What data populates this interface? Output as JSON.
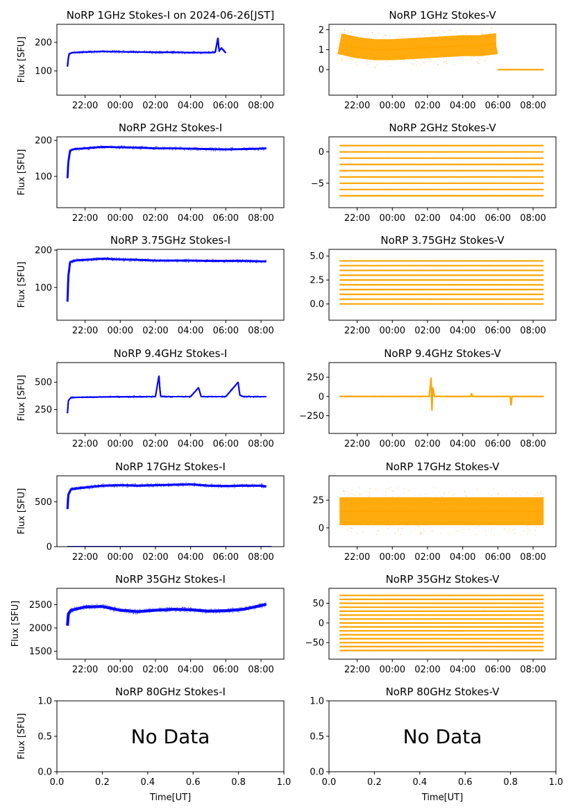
{
  "figure": {
    "background": "#ffffff"
  },
  "colors": {
    "stokes_i": "#0000ff",
    "stokes_v": "#ffa500"
  },
  "chart_data": [
    {
      "type": "scatter",
      "title": "NoRP 1GHz Stokes-I on 2024-06-26[JST]",
      "ylabel": "Flux [SFU]",
      "xlabel": "",
      "column": "left",
      "color": "#0000ff",
      "xlim_hours": [
        20.4,
        33.3
      ],
      "ylim": [
        15,
        263
      ],
      "xticks": [
        "22:00",
        "00:00",
        "02:00",
        "04:00",
        "06:00",
        "08:00"
      ],
      "xtick_hours": [
        22,
        24,
        26,
        28,
        30,
        32
      ],
      "yticks": [
        100,
        200
      ],
      "ytick_labels": [
        "100",
        "200"
      ],
      "series": [
        {
          "x_hours": [
            21.0,
            21.05,
            21.1,
            21.3,
            22,
            23,
            24,
            25,
            26,
            27,
            28,
            29,
            29.4,
            29.55,
            29.62,
            29.75,
            30.0
          ],
          "values": [
            115,
            145,
            160,
            164,
            166,
            168,
            167,
            166,
            165,
            165,
            164,
            164,
            165,
            215,
            170,
            180,
            163
          ],
          "spread": 4
        }
      ]
    },
    {
      "type": "scatter",
      "title": "NoRP 1GHz Stokes-V",
      "ylabel": "",
      "xlabel": "",
      "column": "right",
      "color": "#ffa500",
      "xlim_hours": [
        20.4,
        33.3
      ],
      "ylim": [
        -1.28,
        2.27
      ],
      "xticks": [
        "22:00",
        "00:00",
        "02:00",
        "04:00",
        "06:00",
        "08:00"
      ],
      "xtick_hours": [
        22,
        24,
        26,
        28,
        30,
        32
      ],
      "yticks": [
        0,
        1,
        2
      ],
      "ytick_labels": [
        "0",
        "1",
        "2"
      ],
      "series": [
        {
          "x_hours": [
            21.0,
            22,
            23,
            24,
            25,
            26,
            27,
            28,
            29,
            29.9
          ],
          "values": [
            1.3,
            1.1,
            1.0,
            1.0,
            1.05,
            1.1,
            1.15,
            1.2,
            1.2,
            1.3
          ],
          "spread": 0.75
        },
        {
          "x_hours": [
            30.0,
            32.6
          ],
          "values": [
            0,
            0
          ],
          "spread": 0.02
        }
      ]
    },
    {
      "type": "scatter",
      "title": "NoRP 2GHz Stokes-I",
      "ylabel": "Flux [SFU]",
      "xlabel": "",
      "column": "left",
      "color": "#0000ff",
      "xlim_hours": [
        20.4,
        33.3
      ],
      "ylim": [
        13,
        210
      ],
      "xticks": [
        "22:00",
        "00:00",
        "02:00",
        "04:00",
        "06:00",
        "08:00"
      ],
      "xtick_hours": [
        22,
        24,
        26,
        28,
        30,
        32
      ],
      "yticks": [
        100,
        200
      ],
      "ytick_labels": [
        "100",
        "200"
      ],
      "series": [
        {
          "x_hours": [
            21.0,
            21.05,
            21.15,
            21.4,
            22,
            23,
            24,
            25,
            26,
            27,
            28,
            29,
            30,
            31,
            32,
            32.3
          ],
          "values": [
            95,
            140,
            172,
            176,
            178,
            182,
            181,
            180,
            178,
            178,
            177,
            176,
            175,
            176,
            177,
            178
          ],
          "spread": 4
        }
      ]
    },
    {
      "type": "scatter",
      "title": "NoRP 2GHz Stokes-V",
      "ylabel": "",
      "xlabel": "",
      "column": "right",
      "color": "#ffa500",
      "xlim_hours": [
        20.4,
        33.3
      ],
      "ylim": [
        -8.9,
        2.4
      ],
      "xticks": [
        "22:00",
        "00:00",
        "02:00",
        "04:00",
        "06:00",
        "08:00"
      ],
      "xtick_hours": [
        22,
        24,
        26,
        28,
        30,
        32
      ],
      "yticks": [
        -5,
        0
      ],
      "ytick_labels": [
        "−5",
        "0"
      ],
      "series": [
        {
          "x_hours": [
            21.0,
            32.6
          ],
          "levels": [
            1,
            0,
            -1,
            -2,
            -3,
            -4,
            -5,
            -6,
            -7
          ],
          "values": [
            0,
            0
          ]
        }
      ]
    },
    {
      "type": "scatter",
      "title": "NoRP 3.75GHz Stokes-I",
      "ylabel": "Flux [SFU]",
      "xlabel": "",
      "column": "left",
      "color": "#0000ff",
      "xlim_hours": [
        20.4,
        33.3
      ],
      "ylim": [
        12,
        202
      ],
      "xticks": [
        "22:00",
        "00:00",
        "02:00",
        "04:00",
        "06:00",
        "08:00"
      ],
      "xtick_hours": [
        22,
        24,
        26,
        28,
        30,
        32
      ],
      "yticks": [
        100,
        200
      ],
      "ytick_labels": [
        "100",
        "200"
      ],
      "series": [
        {
          "x_hours": [
            21.0,
            21.05,
            21.15,
            21.4,
            22,
            23,
            24,
            25,
            26,
            27,
            28,
            29,
            30,
            31,
            32,
            32.3
          ],
          "values": [
            62,
            130,
            168,
            172,
            174,
            177,
            175,
            174,
            172,
            172,
            172,
            171,
            171,
            171,
            170,
            170
          ],
          "spread": 4
        }
      ]
    },
    {
      "type": "scatter",
      "title": "NoRP 3.75GHz Stokes-V",
      "ylabel": "",
      "xlabel": "",
      "column": "right",
      "color": "#ffa500",
      "xlim_hours": [
        20.4,
        33.3
      ],
      "ylim": [
        -1.7,
        5.7
      ],
      "xticks": [
        "22:00",
        "00:00",
        "02:00",
        "04:00",
        "06:00",
        "08:00"
      ],
      "xtick_hours": [
        22,
        24,
        26,
        28,
        30,
        32
      ],
      "yticks": [
        0.0,
        2.5,
        5.0
      ],
      "ytick_labels": [
        "0.0",
        "2.5",
        "5.0"
      ],
      "series": [
        {
          "x_hours": [
            21.0,
            32.6
          ],
          "levels": [
            0,
            0.5,
            1,
            1.5,
            2,
            2.5,
            3,
            3.5,
            4,
            4.5
          ],
          "values": [
            0,
            0
          ]
        }
      ]
    },
    {
      "type": "scatter",
      "title": "NoRP 9.4GHz Stokes-I",
      "ylabel": "Flux [SFU]",
      "xlabel": "",
      "column": "left",
      "color": "#0000ff",
      "xlim_hours": [
        20.4,
        33.3
      ],
      "ylim": [
        30,
        680
      ],
      "xticks": [
        "22:00",
        "00:00",
        "02:00",
        "04:00",
        "06:00",
        "08:00"
      ],
      "xtick_hours": [
        22,
        24,
        26,
        28,
        30,
        32
      ],
      "yticks": [
        250,
        500
      ],
      "ytick_labels": [
        "250",
        "500"
      ],
      "series": [
        {
          "x_hours": [
            21.0,
            21.05,
            21.2,
            22,
            23,
            24,
            25,
            26,
            26.2,
            26.25,
            26.3,
            26.5,
            27,
            28,
            28.45,
            28.6,
            29,
            30,
            30.7,
            30.8,
            31,
            32,
            32.3
          ],
          "values": [
            215,
            330,
            360,
            362,
            365,
            366,
            367,
            368,
            560,
            440,
            370,
            368,
            368,
            368,
            450,
            368,
            368,
            368,
            500,
            380,
            368,
            368,
            368
          ],
          "spread": 8
        }
      ]
    },
    {
      "type": "scatter",
      "title": "NoRP 9.4GHz Stokes-V",
      "ylabel": "",
      "xlabel": "",
      "column": "right",
      "color": "#ffa500",
      "xlim_hours": [
        20.4,
        33.3
      ],
      "ylim": [
        -480,
        440
      ],
      "xticks": [
        "22:00",
        "00:00",
        "02:00",
        "04:00",
        "06:00",
        "08:00"
      ],
      "xtick_hours": [
        22,
        24,
        26,
        28,
        30,
        32
      ],
      "yticks": [
        -250,
        0,
        250
      ],
      "ytick_labels": [
        "−250",
        "0",
        "250"
      ],
      "series": [
        {
          "x_hours": [
            21.0,
            26.1,
            26.2,
            26.25,
            26.3,
            26.4,
            28.45,
            28.5,
            28.55,
            30.7,
            30.75,
            30.8,
            32.6
          ],
          "values": [
            0,
            0,
            240,
            -200,
            120,
            0,
            0,
            40,
            0,
            0,
            -120,
            0,
            0
          ],
          "spread": 6
        }
      ]
    },
    {
      "type": "scatter",
      "title": "NoRP 17GHz Stokes-I",
      "ylabel": "Flux [SFU]",
      "xlabel": "",
      "column": "left",
      "color": "#0000ff",
      "xlim_hours": [
        20.4,
        33.3
      ],
      "ylim": [
        0,
        790
      ],
      "xticks": [
        "22:00",
        "00:00",
        "02:00",
        "04:00",
        "06:00",
        "08:00"
      ],
      "xtick_hours": [
        22,
        24,
        26,
        28,
        30,
        32
      ],
      "yticks": [
        0,
        500
      ],
      "ytick_labels": [
        "0",
        "500"
      ],
      "series": [
        {
          "x_hours": [
            21.0,
            21.05,
            21.2,
            22,
            23,
            24,
            25,
            26,
            27,
            28,
            29,
            30,
            31,
            32,
            32.3
          ],
          "values": [
            420,
            580,
            640,
            660,
            680,
            685,
            680,
            685,
            690,
            695,
            680,
            675,
            680,
            680,
            670
          ],
          "spread": 18
        },
        {
          "x_hours": [
            21.0,
            32.6
          ],
          "values": [
            0,
            0
          ],
          "spread": 2
        }
      ]
    },
    {
      "type": "scatter",
      "title": "NoRP 17GHz Stokes-V",
      "ylabel": "",
      "xlabel": "",
      "column": "right",
      "color": "#ffa500",
      "xlim_hours": [
        20.4,
        33.3
      ],
      "ylim": [
        -17,
        47
      ],
      "xticks": [
        "22:00",
        "00:00",
        "02:00",
        "04:00",
        "06:00",
        "08:00"
      ],
      "xtick_hours": [
        22,
        24,
        26,
        28,
        30,
        32
      ],
      "yticks": [
        0,
        25
      ],
      "ytick_labels": [
        "0",
        "25"
      ],
      "series": [
        {
          "x_hours": [
            21.0,
            32.6
          ],
          "values": [
            15,
            15
          ],
          "spread": 18
        }
      ]
    },
    {
      "type": "scatter",
      "title": "NoRP 35GHz Stokes-I",
      "ylabel": "Flux [SFU]",
      "xlabel": "",
      "column": "left",
      "color": "#0000ff",
      "xlim_hours": [
        20.4,
        33.3
      ],
      "ylim": [
        1330,
        2850
      ],
      "xticks": [
        "22:00",
        "00:00",
        "02:00",
        "04:00",
        "06:00",
        "08:00"
      ],
      "xtick_hours": [
        22,
        24,
        26,
        28,
        30,
        32
      ],
      "yticks": [
        1500,
        2000,
        2500
      ],
      "ytick_labels": [
        "1500",
        "2000",
        "2500"
      ],
      "series": [
        {
          "x_hours": [
            21.0,
            21.05,
            21.2,
            22,
            23,
            24,
            25,
            26,
            27,
            28,
            29,
            30,
            31,
            32,
            32.3
          ],
          "values": [
            2050,
            2300,
            2380,
            2450,
            2460,
            2380,
            2350,
            2380,
            2400,
            2390,
            2360,
            2370,
            2400,
            2480,
            2510
          ],
          "spread": 45
        }
      ]
    },
    {
      "type": "scatter",
      "title": "NoRP 35GHz Stokes-V",
      "ylabel": "",
      "xlabel": "",
      "column": "right",
      "color": "#ffa500",
      "xlim_hours": [
        20.4,
        33.3
      ],
      "ylim": [
        -92,
        88
      ],
      "xticks": [
        "22:00",
        "00:00",
        "02:00",
        "04:00",
        "06:00",
        "08:00"
      ],
      "xtick_hours": [
        22,
        24,
        26,
        28,
        30,
        32
      ],
      "yticks": [
        -50,
        0,
        50
      ],
      "ytick_labels": [
        "−50",
        "0",
        "50"
      ],
      "series": [
        {
          "x_hours": [
            21.0,
            32.6
          ],
          "levels": [
            -70,
            -60,
            -50,
            -40,
            -30,
            -20,
            -10,
            0,
            10,
            20,
            30,
            40,
            50,
            60,
            70
          ],
          "values": [
            0,
            0
          ]
        }
      ]
    },
    {
      "type": "scatter",
      "title": "NoRP 80GHz Stokes-I",
      "ylabel": "Flux [SFU]",
      "xlabel": "Time[UT]",
      "column": "left",
      "color": "#0000ff",
      "empty": true,
      "annotation": "No Data",
      "xlim": [
        0,
        1
      ],
      "ylim": [
        0,
        1
      ],
      "xticks": [
        "0.0",
        "0.2",
        "0.4",
        "0.6",
        "0.8",
        "1.0"
      ],
      "xtick_vals": [
        0,
        0.2,
        0.4,
        0.6,
        0.8,
        1.0
      ],
      "yticks": [
        0,
        0.5,
        1.0
      ],
      "ytick_labels": [
        "0.0",
        "0.5",
        "1.0"
      ],
      "series": []
    },
    {
      "type": "scatter",
      "title": "NoRP 80GHz Stokes-V",
      "ylabel": "",
      "xlabel": "Time[UT]",
      "column": "right",
      "color": "#ffa500",
      "empty": true,
      "annotation": "No Data",
      "xlim": [
        0,
        1
      ],
      "ylim": [
        0,
        1
      ],
      "xticks": [
        "0.0",
        "0.2",
        "0.4",
        "0.6",
        "0.8",
        "1.0"
      ],
      "xtick_vals": [
        0,
        0.2,
        0.4,
        0.6,
        0.8,
        1.0
      ],
      "yticks": [
        0,
        0.5,
        1.0
      ],
      "ytick_labels": [
        "0.0",
        "0.5",
        "1.0"
      ],
      "series": []
    }
  ]
}
